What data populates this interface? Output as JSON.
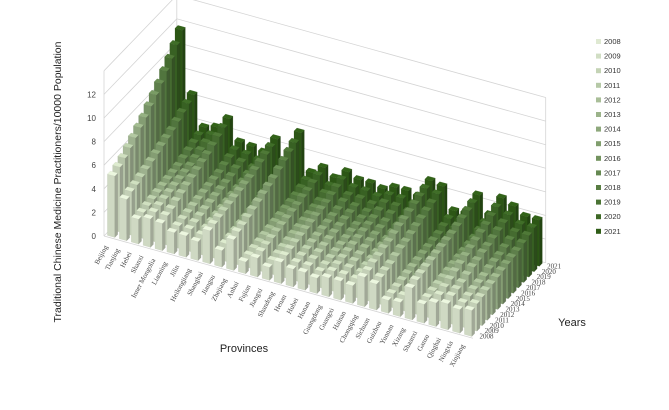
{
  "chart_data": {
    "type": "bar",
    "variant": "3d-bar",
    "zlabel": "Traditional Chinese Medicine Practitioners/10000 Population",
    "xlabel": "Provinces",
    "ylabel": "Years",
    "zlim": [
      0,
      14
    ],
    "zticks": [
      0,
      2,
      4,
      6,
      8,
      10,
      12
    ],
    "grid": true,
    "legend_position": "right",
    "categories": [
      "Beijing",
      "Tianjing",
      "Hebei",
      "Shanxi",
      "Inner Mongolia",
      "Liaoning",
      "Jilin",
      "Heilongjiang",
      "Shanghai",
      "Jiangsu",
      "Zhejiang",
      "Anhui",
      "Fujian",
      "Jiangxi",
      "Shandong",
      "Henan",
      "Hubei",
      "Hunan",
      "Guangdong",
      "Guangxi",
      "Hainan",
      "Chongqing",
      "Sichuan",
      "Guizhou",
      "Yunnan",
      "Xizang",
      "Shaanxi",
      "Gansu",
      "Qinghai",
      "Ningxia",
      "Xinjiang"
    ],
    "series": [
      {
        "name": "2008",
        "values": [
          5.2,
          3.5,
          2.1,
          2.4,
          2.3,
          1.8,
          1.8,
          1.6,
          2.8,
          1.4,
          2.6,
          1.0,
          1.6,
          1.1,
          1.8,
          1.5,
          1.5,
          1.3,
          1.6,
          1.6,
          1.5,
          2.5,
          2.2,
          1.1,
          1.2,
          2.7,
          1.6,
          2.0,
          2.2,
          2.0,
          2.2
        ]
      },
      {
        "name": "2009",
        "values": [
          5.5,
          3.7,
          2.2,
          2.5,
          2.5,
          1.9,
          1.9,
          1.7,
          2.9,
          1.5,
          2.8,
          1.1,
          1.7,
          1.2,
          1.9,
          1.6,
          1.6,
          1.4,
          1.7,
          1.7,
          1.6,
          2.6,
          2.3,
          1.2,
          1.3,
          2.9,
          1.7,
          2.2,
          2.4,
          2.1,
          2.3
        ]
      },
      {
        "name": "2010",
        "values": [
          5.8,
          3.8,
          2.3,
          2.6,
          2.6,
          2.0,
          2.0,
          1.8,
          3.0,
          1.6,
          2.9,
          1.2,
          1.8,
          1.3,
          2.0,
          1.7,
          1.7,
          1.5,
          1.8,
          1.8,
          1.7,
          2.8,
          2.4,
          1.3,
          1.4,
          3.0,
          1.8,
          2.4,
          2.5,
          2.2,
          2.4
        ]
      },
      {
        "name": "2011",
        "values": [
          6.2,
          4.0,
          2.4,
          2.7,
          2.8,
          2.1,
          2.1,
          1.9,
          3.1,
          1.7,
          3.1,
          1.3,
          1.9,
          1.4,
          2.1,
          1.8,
          1.8,
          1.6,
          1.9,
          1.9,
          1.8,
          2.9,
          2.5,
          1.4,
          1.5,
          3.1,
          1.9,
          2.6,
          2.6,
          2.3,
          2.5
        ]
      },
      {
        "name": "2012",
        "values": [
          6.6,
          4.2,
          2.5,
          2.8,
          3.0,
          2.2,
          2.2,
          2.0,
          3.2,
          1.8,
          3.3,
          1.4,
          2.0,
          1.5,
          2.2,
          1.9,
          1.9,
          1.7,
          2.0,
          2.0,
          1.9,
          3.1,
          2.7,
          1.5,
          1.6,
          3.2,
          2.0,
          2.8,
          2.8,
          2.4,
          2.6
        ]
      },
      {
        "name": "2013",
        "values": [
          7.0,
          4.4,
          2.6,
          2.9,
          3.2,
          2.3,
          2.3,
          2.1,
          3.3,
          1.9,
          3.5,
          1.5,
          2.1,
          1.6,
          2.3,
          2.0,
          2.0,
          1.8,
          2.1,
          2.1,
          2.0,
          3.2,
          2.9,
          1.6,
          1.7,
          3.3,
          2.1,
          3.0,
          3.0,
          2.5,
          2.7
        ]
      },
      {
        "name": "2014",
        "values": [
          7.4,
          4.6,
          2.7,
          3.0,
          3.4,
          2.4,
          2.4,
          2.2,
          3.4,
          2.0,
          3.7,
          1.6,
          2.2,
          1.7,
          2.4,
          2.1,
          2.1,
          1.9,
          2.2,
          2.2,
          2.1,
          3.4,
          3.0,
          1.7,
          1.8,
          3.4,
          2.2,
          3.2,
          3.1,
          2.7,
          2.8
        ]
      },
      {
        "name": "2015",
        "values": [
          7.9,
          4.8,
          2.8,
          3.1,
          3.6,
          2.5,
          2.5,
          2.3,
          3.5,
          2.1,
          3.9,
          1.7,
          2.3,
          1.8,
          2.5,
          2.2,
          2.2,
          2.0,
          2.3,
          2.3,
          2.2,
          3.6,
          3.2,
          1.8,
          1.9,
          3.5,
          2.3,
          3.4,
          3.3,
          2.8,
          2.9
        ]
      },
      {
        "name": "2016",
        "values": [
          8.4,
          5.0,
          2.9,
          3.2,
          3.8,
          2.6,
          2.6,
          2.4,
          3.6,
          2.2,
          4.1,
          1.8,
          2.4,
          1.9,
          2.6,
          2.3,
          2.3,
          2.1,
          2.4,
          2.4,
          2.3,
          3.7,
          3.4,
          1.9,
          2.0,
          3.6,
          2.4,
          3.6,
          3.4,
          2.9,
          3.0
        ]
      },
      {
        "name": "2017",
        "values": [
          8.9,
          5.2,
          3.1,
          3.4,
          4.0,
          2.7,
          2.7,
          2.5,
          3.8,
          2.3,
          4.4,
          1.9,
          2.6,
          2.0,
          2.7,
          2.4,
          2.4,
          2.2,
          2.5,
          2.5,
          2.4,
          3.9,
          3.6,
          2.0,
          2.1,
          3.8,
          2.5,
          3.8,
          3.6,
          3.1,
          3.1
        ]
      },
      {
        "name": "2018",
        "values": [
          9.5,
          5.5,
          3.3,
          3.6,
          4.3,
          2.9,
          2.9,
          2.7,
          4.0,
          2.4,
          4.7,
          2.0,
          2.7,
          2.1,
          2.9,
          2.6,
          2.5,
          2.3,
          2.7,
          2.7,
          2.5,
          4.1,
          3.8,
          2.1,
          2.2,
          4.0,
          2.6,
          4.0,
          3.8,
          3.3,
          3.3
        ]
      },
      {
        "name": "2019",
        "values": [
          10.1,
          5.8,
          3.5,
          3.8,
          4.6,
          3.1,
          3.0,
          2.8,
          4.2,
          2.6,
          5.0,
          2.2,
          2.9,
          2.3,
          3.1,
          2.7,
          2.7,
          2.5,
          2.9,
          2.9,
          2.7,
          4.3,
          4.0,
          2.3,
          2.4,
          4.2,
          2.8,
          4.3,
          4.0,
          3.5,
          3.5
        ]
      },
      {
        "name": "2020",
        "values": [
          10.8,
          6.1,
          3.7,
          4.0,
          4.9,
          3.3,
          3.2,
          3.0,
          4.4,
          2.8,
          5.3,
          2.4,
          3.1,
          2.5,
          3.3,
          2.9,
          2.9,
          2.7,
          3.1,
          3.1,
          2.9,
          4.5,
          4.3,
          2.5,
          2.6,
          4.4,
          3.0,
          4.6,
          4.2,
          3.7,
          3.7
        ]
      },
      {
        "name": "2021",
        "values": [
          11.6,
          6.4,
          3.9,
          4.2,
          5.2,
          3.5,
          3.4,
          3.2,
          4.6,
          3.0,
          5.7,
          2.6,
          3.3,
          2.7,
          3.5,
          3.1,
          3.1,
          2.9,
          3.3,
          3.3,
          3.1,
          4.7,
          4.5,
          2.7,
          2.8,
          4.6,
          3.2,
          4.9,
          4.5,
          3.9,
          3.9
        ]
      }
    ]
  },
  "colors": {
    "light": "#dfe9d2",
    "dark": "#2f5d17",
    "grid": "#d4d4d4"
  }
}
